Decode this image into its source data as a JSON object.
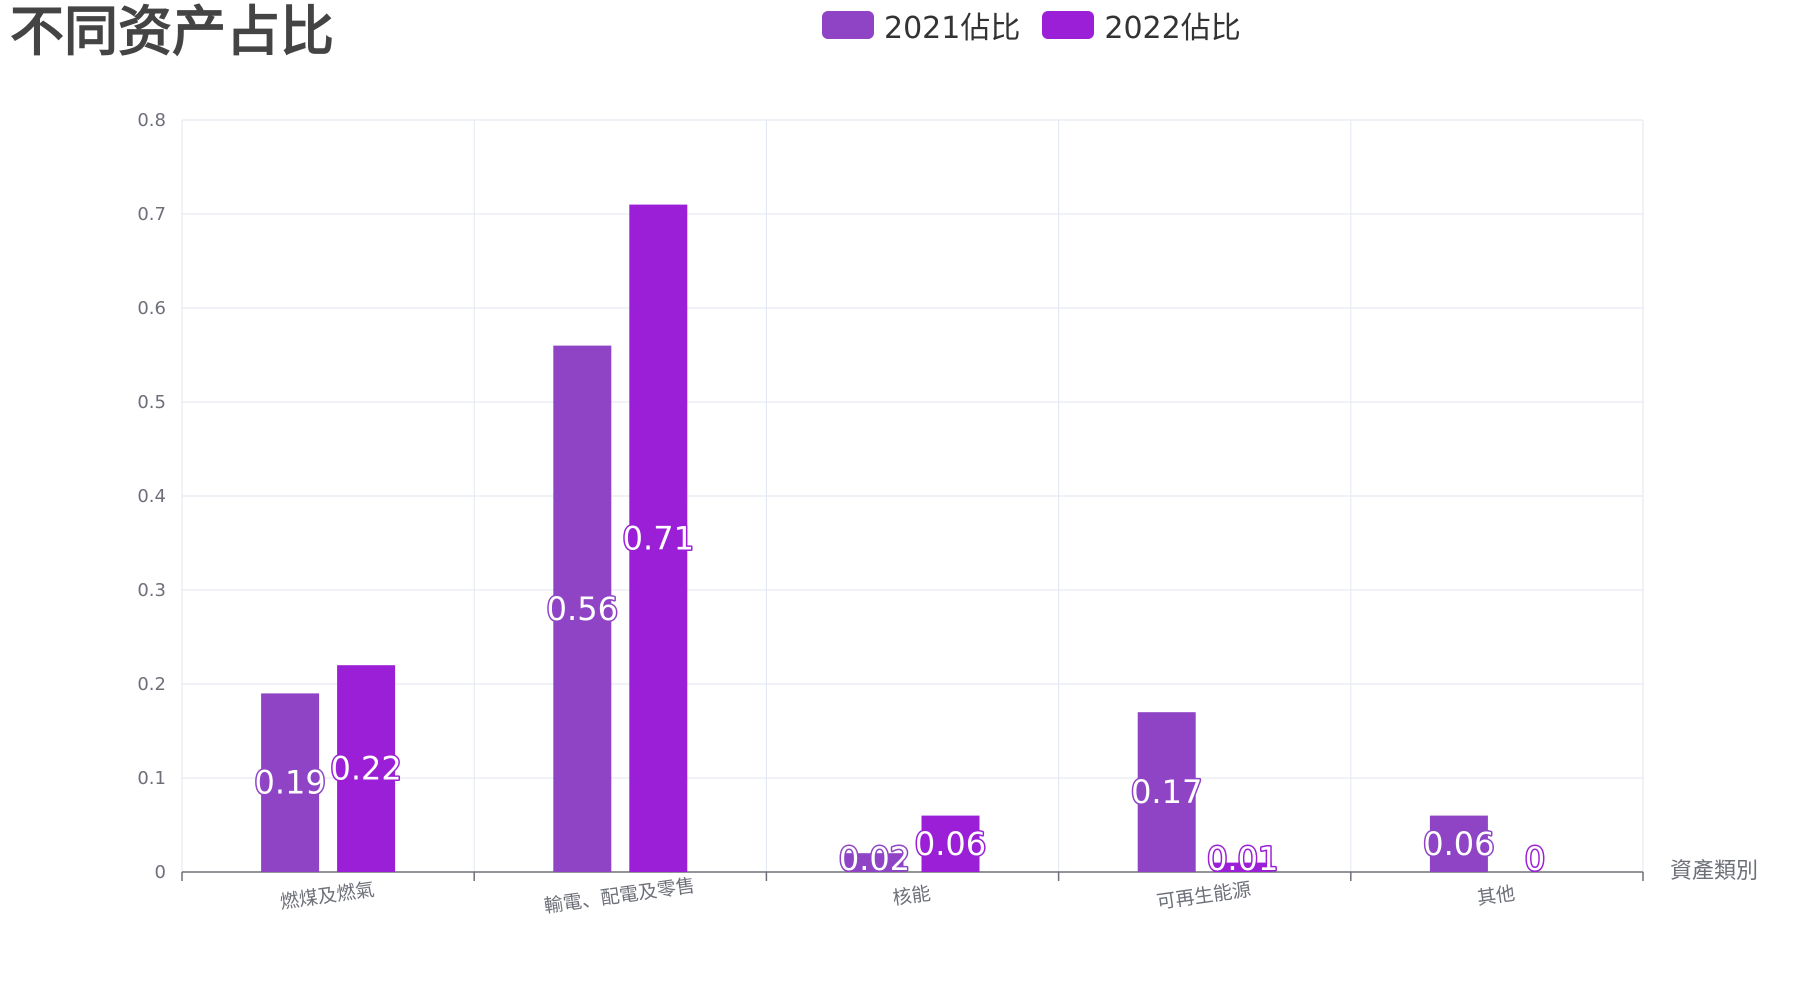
{
  "chart_data": {
    "type": "bar",
    "title": "不同资产占比",
    "xlabel": "資產類別",
    "ylabel": "",
    "categories": [
      "燃煤及燃氣",
      "輸電、配電及零售",
      "核能",
      "可再生能源",
      "其他"
    ],
    "series": [
      {
        "name": "2021佔比",
        "values": [
          0.19,
          0.56,
          0.02,
          0.17,
          0.06
        ],
        "color": "#8e44c4"
      },
      {
        "name": "2022佔比",
        "values": [
          0.22,
          0.71,
          0.06,
          0.01,
          0
        ],
        "color": "#9b1fd6"
      }
    ],
    "ylim": [
      0,
      0.8
    ],
    "yticks": [
      "0",
      "0.1",
      "0.2",
      "0.3",
      "0.4",
      "0.5",
      "0.6",
      "0.7",
      "0.8"
    ],
    "grid": true,
    "legend_position": "top-center",
    "data_labels": true,
    "colors": {
      "grid": "#e0e6f1",
      "axis": "#6e7079",
      "title": "#444444"
    }
  }
}
